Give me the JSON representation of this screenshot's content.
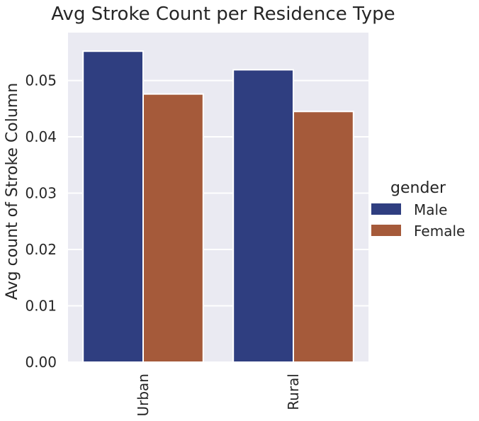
{
  "chart_data": {
    "type": "bar",
    "title": "Avg Stroke Count per Residence Type",
    "xlabel": "",
    "ylabel": "Avg count of Stroke Column",
    "categories": [
      "Urban",
      "Rural"
    ],
    "series": [
      {
        "name": "Male",
        "values": [
          0.0552,
          0.0519
        ],
        "color": "#2f3e80"
      },
      {
        "name": "Female",
        "values": [
          0.0476,
          0.0445
        ],
        "color": "#a55a3a"
      }
    ],
    "ylim": [
      0,
      0.0585
    ],
    "yticks": [
      0.0,
      0.01,
      0.02,
      0.03,
      0.04,
      0.05
    ],
    "ytick_labels": [
      "0.00",
      "0.01",
      "0.02",
      "0.03",
      "0.04",
      "0.05"
    ],
    "grid": true,
    "legend": {
      "title": "gender",
      "placement": "right"
    },
    "colors": {
      "plot_background": "#eaeaf2",
      "grid": "#ffffff",
      "text": "#262626"
    }
  }
}
